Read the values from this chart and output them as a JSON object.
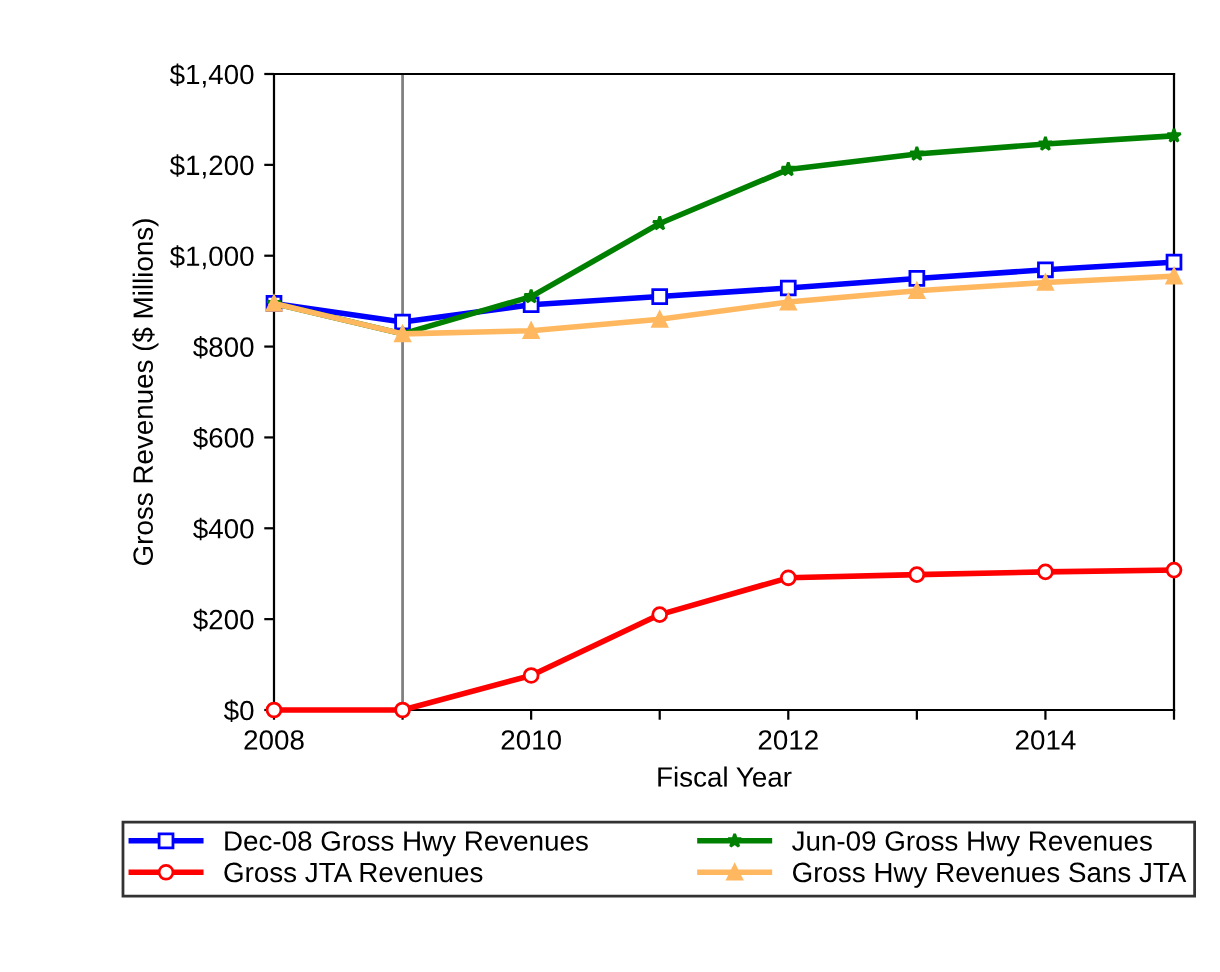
{
  "chart_data": {
    "type": "line",
    "xlabel": "Fiscal Year",
    "ylabel": "Gross Revenues ($ Millions)",
    "x": [
      2008,
      2009,
      2010,
      2011,
      2012,
      2013,
      2014,
      2015
    ],
    "series": [
      {
        "name": "Dec-08 Gross Hwy Revenues",
        "color": "#0000ff",
        "marker": "square",
        "values": [
          895,
          854,
          892,
          910,
          929,
          950,
          969,
          986
        ]
      },
      {
        "name": "Gross JTA Revenues",
        "color": "#ff0000",
        "marker": "circle",
        "values": [
          0,
          0,
          76,
          210,
          291,
          298,
          304,
          308
        ]
      },
      {
        "name": "Jun-09 Gross Hwy Revenues",
        "color": "#008000",
        "marker": "star",
        "values": [
          895,
          828,
          910,
          1071,
          1190,
          1224,
          1246,
          1264
        ]
      },
      {
        "name": "Gross Hwy Revenues Sans JTA",
        "color": "#ffb860",
        "marker": "triangle",
        "values": [
          895,
          828,
          835,
          860,
          898,
          923,
          941,
          955
        ]
      }
    ],
    "xlim": [
      2008,
      2015
    ],
    "ylim": [
      0,
      1400
    ],
    "xticks": [
      2008,
      {
        "value": 2009,
        "label": null
      },
      2010,
      {
        "value": 2011,
        "label": null
      },
      2012,
      {
        "value": 2013,
        "label": null
      },
      2014,
      {
        "value": 2015,
        "label": null
      }
    ],
    "yticks": [
      {
        "value": 0,
        "label": "$0"
      },
      {
        "value": 200,
        "label": "$200"
      },
      {
        "value": 400,
        "label": "$400"
      },
      {
        "value": 600,
        "label": "$600"
      },
      {
        "value": 800,
        "label": "$800"
      },
      {
        "value": 1000,
        "label": "$1,000"
      },
      {
        "value": 1200,
        "label": "$1,200"
      },
      {
        "value": 1400,
        "label": "$1,400"
      }
    ],
    "ref_lines": [
      {
        "axis": "x",
        "value": 2009,
        "color": "#808080"
      }
    ],
    "grid": false,
    "legend": "bottom",
    "line_style": "solid"
  }
}
